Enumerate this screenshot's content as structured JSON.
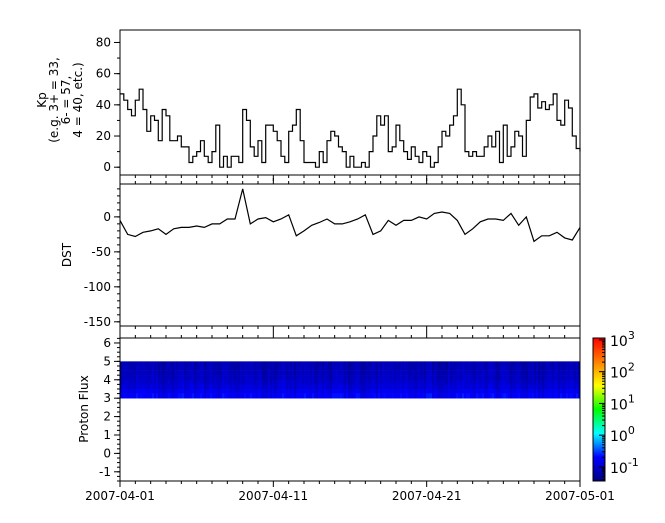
{
  "chart_data": [
    {
      "type": "line",
      "ylabel_lines": [
        "Kp",
        "(e.g. 3+ = 33,",
        "6- = 57,",
        "4 = 40, etc.)"
      ],
      "ylim": [
        -5,
        88
      ],
      "yticks": [
        "0",
        "20",
        "40",
        "60",
        "80"
      ],
      "x_start": "2007-04-01",
      "x_end": "2007-05-01",
      "step_hours": 6,
      "values": [
        47,
        43,
        37,
        33,
        43,
        50,
        37,
        23,
        33,
        30,
        17,
        37,
        33,
        17,
        17,
        20,
        13,
        13,
        3,
        7,
        10,
        17,
        7,
        3,
        10,
        27,
        0,
        7,
        0,
        7,
        7,
        3,
        37,
        30,
        13,
        7,
        17,
        3,
        27,
        27,
        23,
        17,
        7,
        3,
        23,
        27,
        37,
        17,
        3,
        3,
        3,
        0,
        10,
        3,
        17,
        23,
        20,
        13,
        10,
        0,
        7,
        0,
        0,
        3,
        0,
        10,
        20,
        33,
        27,
        33,
        10,
        13,
        27,
        17,
        10,
        5,
        13,
        7,
        3,
        10,
        7,
        0,
        3,
        13,
        23,
        20,
        27,
        33,
        50,
        40,
        10,
        7,
        10,
        7,
        7,
        13,
        20,
        13,
        23,
        3,
        27,
        7,
        13,
        23,
        20,
        7,
        30,
        45,
        47,
        38,
        42,
        37,
        40,
        47,
        30,
        27,
        43,
        38,
        20,
        12,
        10
      ],
      "line_color": "#000000"
    },
    {
      "type": "line",
      "ylabel": "DST",
      "ylim": [
        -156,
        47
      ],
      "yticks": [
        "0",
        "-50",
        "-100",
        "-150"
      ],
      "x_start": "2007-04-01",
      "x_end": "2007-05-01",
      "step_hours": 12,
      "values": [
        -5,
        -25,
        -28,
        -22,
        -20,
        -17,
        -25,
        -17,
        -15,
        -15,
        -13,
        -15,
        -10,
        -10,
        -3,
        -3,
        40,
        -10,
        -3,
        -1,
        -7,
        -3,
        3,
        -27,
        -20,
        -12,
        -8,
        -3,
        -10,
        -10,
        -7,
        -3,
        3,
        -25,
        -20,
        -5,
        -12,
        -5,
        -5,
        0,
        -3,
        5,
        7,
        5,
        -5,
        -25,
        -17,
        -7,
        -3,
        -3,
        -5,
        5,
        -12,
        0,
        -35,
        -27,
        -27,
        -22,
        -30,
        -33,
        -15
      ],
      "line_color": "#000000"
    },
    {
      "type": "heatmap",
      "ylabel": "Proton Flux",
      "ylim": [
        -1.5,
        6.27
      ],
      "yticks": [
        "-1",
        "0",
        "1",
        "2",
        "3",
        "4",
        "5",
        "6"
      ],
      "x_start": "2007-04-01",
      "x_end": "2007-05-01",
      "band_y_range": [
        3,
        5
      ],
      "row_y_centers": [
        4.875,
        4.625,
        4.375,
        4.125,
        3.875,
        3.625,
        3.375,
        3.125
      ],
      "row_typical_flux": [
        0.06,
        0.065,
        0.07,
        0.075,
        0.085,
        0.1,
        0.13,
        0.16
      ],
      "colorbar": {
        "scale": "log",
        "range": [
          0.036,
          1150
        ],
        "tick_bases": [
          "10",
          "10",
          "10",
          "10",
          "10"
        ],
        "tick_exponents": [
          "3",
          "2",
          "1",
          "0",
          "-1"
        ],
        "colormap": [
          "#00007f",
          "#0000ff",
          "#00ffff",
          "#00ff00",
          "#ffff00",
          "#ff7f00",
          "#ff0000"
        ]
      }
    }
  ],
  "x_axis": {
    "tick_labels": [
      "2007-04-01",
      "2007-04-11",
      "2007-04-21",
      "2007-05-01"
    ]
  }
}
